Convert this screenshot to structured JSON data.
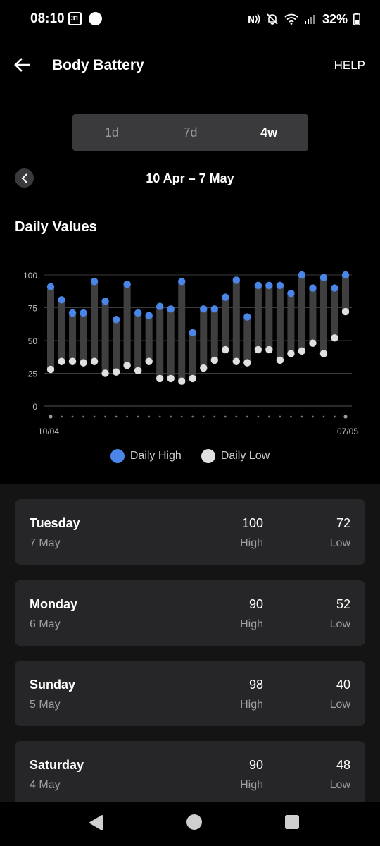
{
  "status_bar": {
    "time": "08:10",
    "calendar_day": "31",
    "battery_percent": "32%",
    "icons": [
      "calendar-icon",
      "circle-icon",
      "nfc-icon",
      "mute-icon",
      "wifi-icon",
      "signal-icon",
      "battery-icon"
    ]
  },
  "app_bar": {
    "title": "Body Battery",
    "help_label": "HELP"
  },
  "range_tabs": [
    {
      "label": "1d",
      "active": false
    },
    {
      "label": "7d",
      "active": false
    },
    {
      "label": "4w",
      "active": true
    }
  ],
  "date_range": "10 Apr – 7 May",
  "section_title": "Daily Values",
  "colors": {
    "high": "#4a86e8",
    "low": "#e0e0e0",
    "bar": "#3f3f3f"
  },
  "chart_data": {
    "type": "bar",
    "subtype": "range",
    "x_tick_labels": [
      "10/04",
      "07/05"
    ],
    "x_start": "10/04",
    "x_end": "07/05",
    "ylim": [
      0,
      100
    ],
    "y_ticks": [
      0,
      25,
      50,
      75,
      100
    ],
    "grid": true,
    "legend_position": "bottom",
    "series": [
      {
        "name": "Daily High",
        "color": "#4a86e8",
        "values": [
          91,
          81,
          71,
          71,
          95,
          80,
          66,
          93,
          71,
          69,
          76,
          74,
          95,
          56,
          74,
          74,
          83,
          96,
          68,
          92,
          92,
          92,
          86,
          100,
          90,
          98,
          90,
          100
        ]
      },
      {
        "name": "Daily Low",
        "color": "#e0e0e0",
        "values": [
          28,
          34,
          34,
          33,
          34,
          25,
          26,
          31,
          27,
          34,
          21,
          21,
          19,
          21,
          29,
          35,
          43,
          34,
          33,
          43,
          43,
          35,
          40,
          42,
          48,
          40,
          52,
          72
        ]
      }
    ]
  },
  "legend": [
    {
      "label": "Daily High",
      "color": "#4a86e8"
    },
    {
      "label": "Daily Low",
      "color": "#e0e0e0"
    }
  ],
  "days": [
    {
      "day": "Tuesday",
      "date": "7 May",
      "high": "100",
      "high_label": "High",
      "low": "72",
      "low_label": "Low"
    },
    {
      "day": "Monday",
      "date": "6 May",
      "high": "90",
      "high_label": "High",
      "low": "52",
      "low_label": "Low"
    },
    {
      "day": "Sunday",
      "date": "5 May",
      "high": "98",
      "high_label": "High",
      "low": "40",
      "low_label": "Low"
    },
    {
      "day": "Saturday",
      "date": "4 May",
      "high": "90",
      "high_label": "High",
      "low": "48",
      "low_label": "Low"
    }
  ]
}
